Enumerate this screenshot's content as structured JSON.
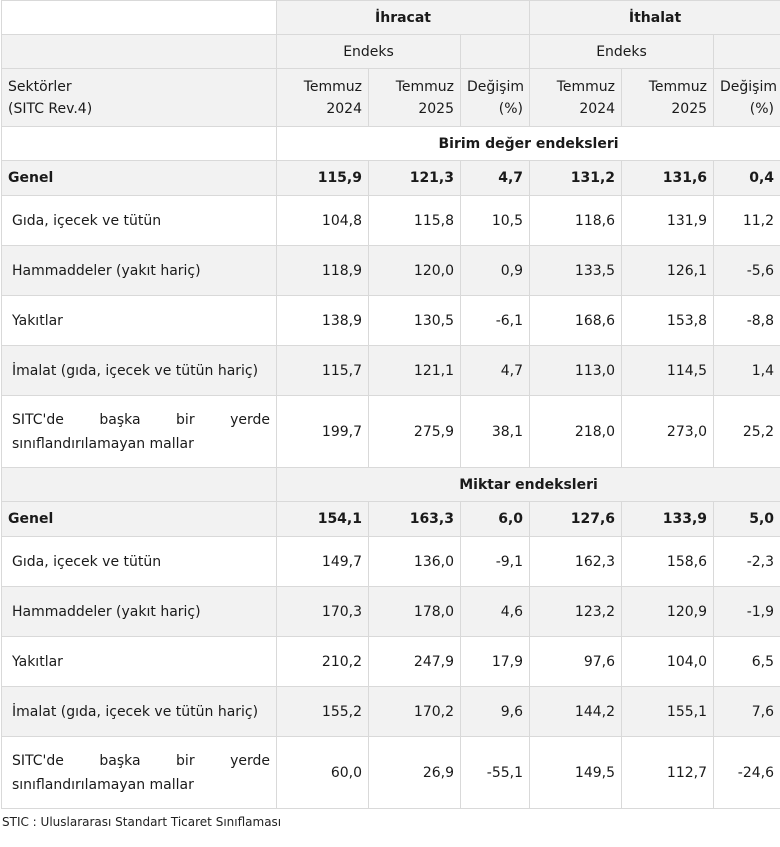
{
  "header": {
    "ihracat": "İhracat",
    "ithalat": "İthalat",
    "endeks": "Endeks",
    "sector_label_1": "Sektörler",
    "sector_label_2": "(SITC Rev.4)",
    "col_2024_a": "Temmuz",
    "col_2024_b": "2024",
    "col_2025_a": "Temmuz",
    "col_2025_b": "2025",
    "col_change_a": "Değişim",
    "col_change_b": "(%)"
  },
  "sections": [
    {
      "title": "Birim değer endeksleri",
      "genel": {
        "label": "Genel",
        "values": [
          "115,9",
          "121,3",
          "4,7",
          "131,2",
          "131,6",
          "0,4"
        ]
      },
      "rows": [
        {
          "label": "Gıda, içecek ve tütün",
          "values": [
            "104,8",
            "115,8",
            "10,5",
            "118,6",
            "131,9",
            "11,2"
          ]
        },
        {
          "label": "Hammaddeler (yakıt hariç)",
          "values": [
            "118,9",
            "120,0",
            "0,9",
            "133,5",
            "126,1",
            "-5,6"
          ]
        },
        {
          "label": "Yakıtlar",
          "values": [
            "138,9",
            "130,5",
            "-6,1",
            "168,6",
            "153,8",
            "-8,8"
          ]
        },
        {
          "label": "İmalat (gıda, içecek ve tütün hariç)",
          "values": [
            "115,7",
            "121,1",
            "4,7",
            "113,0",
            "114,5",
            "1,4"
          ]
        },
        {
          "label_words": [
            "SITC'de",
            "başka",
            "bir",
            "yerde"
          ],
          "label_line2": "sınıflandırılamayan mallar",
          "values": [
            "199,7",
            "275,9",
            "38,1",
            "218,0",
            "273,0",
            "25,2"
          ]
        }
      ]
    },
    {
      "title": "Miktar endeksleri",
      "genel": {
        "label": "Genel",
        "values": [
          "154,1",
          "163,3",
          "6,0",
          "127,6",
          "133,9",
          "5,0"
        ]
      },
      "rows": [
        {
          "label": "Gıda, içecek ve tütün",
          "values": [
            "149,7",
            "136,0",
            "-9,1",
            "162,3",
            "158,6",
            "-2,3"
          ]
        },
        {
          "label": "Hammaddeler (yakıt hariç)",
          "values": [
            "170,3",
            "178,0",
            "4,6",
            "123,2",
            "120,9",
            "-1,9"
          ]
        },
        {
          "label": "Yakıtlar",
          "values": [
            "210,2",
            "247,9",
            "17,9",
            "97,6",
            "104,0",
            "6,5"
          ]
        },
        {
          "label": "İmalat (gıda, içecek ve tütün hariç)",
          "values": [
            "155,2",
            "170,2",
            "9,6",
            "144,2",
            "155,1",
            "7,6"
          ]
        },
        {
          "label_words": [
            "SITC'de",
            "başka",
            "bir",
            "yerde"
          ],
          "label_line2": "sınıflandırılamayan mallar",
          "values": [
            "60,0",
            "26,9",
            "-55,1",
            "149,5",
            "112,7",
            "-24,6"
          ]
        }
      ]
    }
  ],
  "footnote": "STIC : Uluslararası Standart Ticaret Sınıflaması"
}
